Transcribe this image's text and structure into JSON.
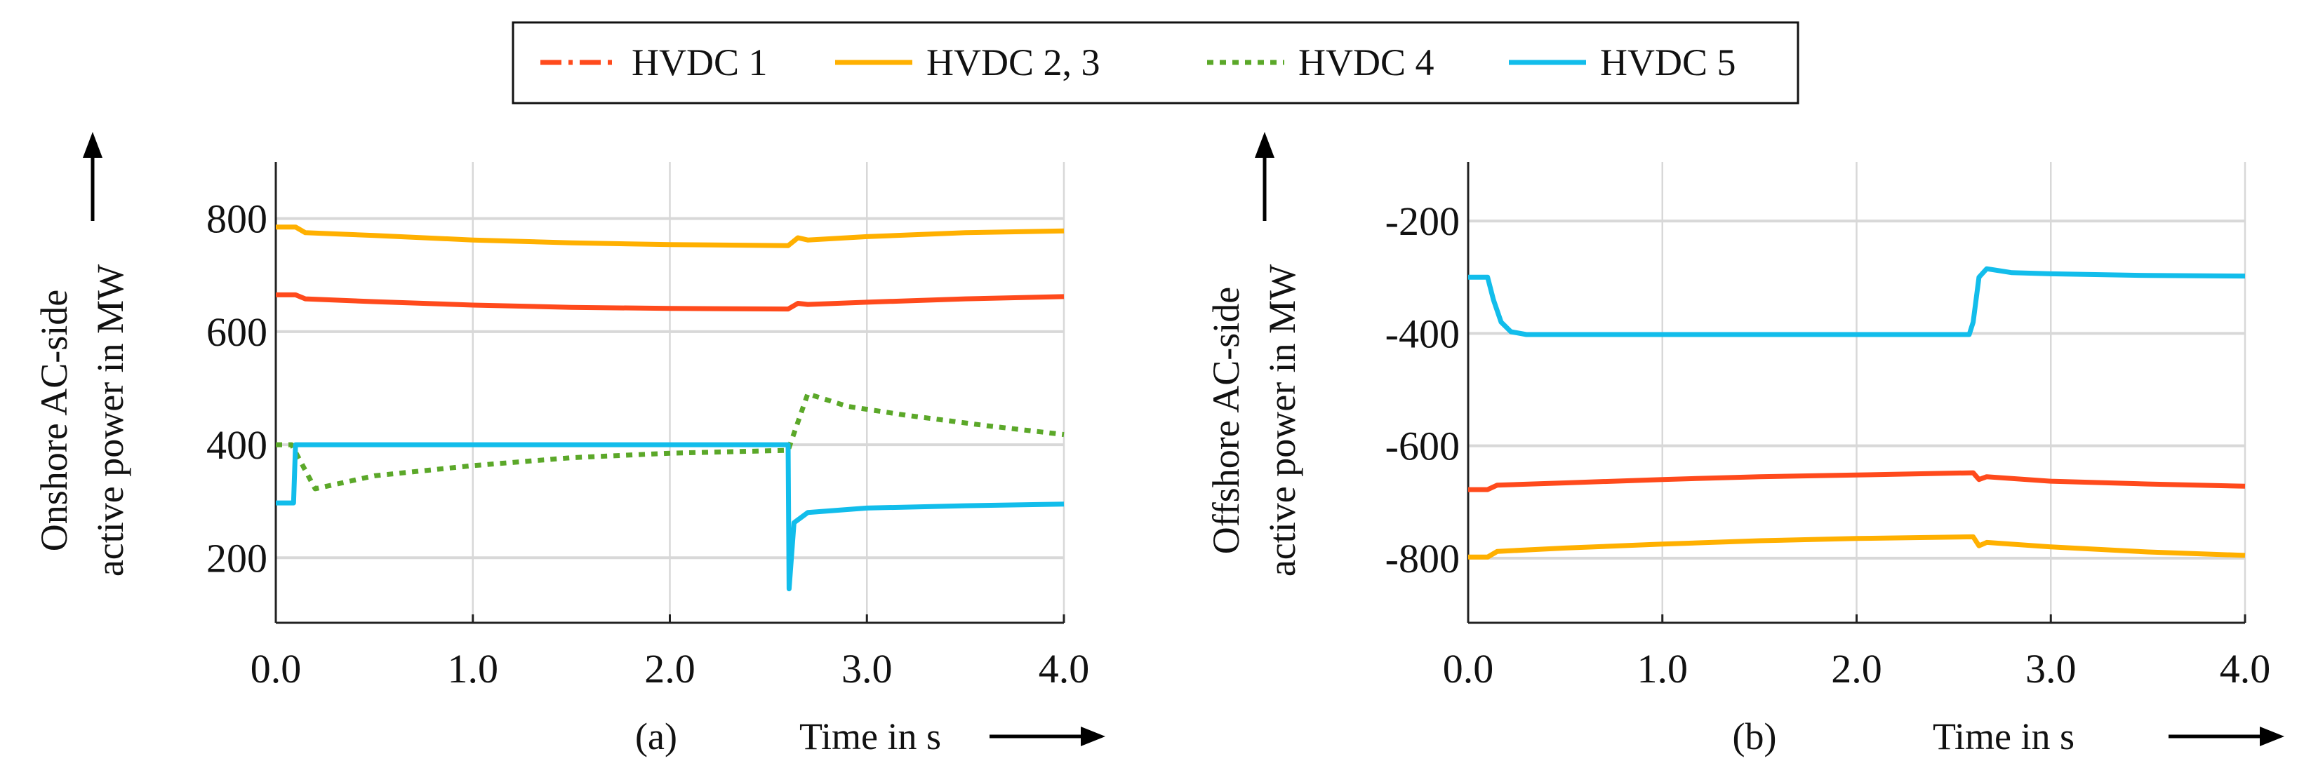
{
  "legend": [
    {
      "name": "HVDC 1",
      "color": "#FF4A1C",
      "dash": "dashdot"
    },
    {
      "name": "HVDC 2, 3",
      "color": "#FFB000",
      "dash": "solid"
    },
    {
      "name": "HVDC 4",
      "color": "#5BA829",
      "dash": "dotted"
    },
    {
      "name": "HVDC 5",
      "color": "#12BDEB",
      "dash": "solid"
    }
  ],
  "chart_data": [
    {
      "type": "line",
      "panel": "(a)",
      "ylabel_lines": [
        "Onshore AC-side",
        "active power in MW"
      ],
      "xlabel": "Time in s",
      "xlim": [
        0,
        4
      ],
      "ylim": [
        85,
        900
      ],
      "xticks": [
        0,
        1,
        2,
        3,
        4
      ],
      "xtick_labels": [
        "0.0",
        "1.0",
        "2.0",
        "3.0",
        "4.0"
      ],
      "yticks": [
        200,
        400,
        600,
        800
      ],
      "ytick_labels": [
        "200",
        "400",
        "600",
        "800"
      ],
      "grid": true,
      "series": [
        {
          "name": "HVDC 1",
          "x": [
            0,
            0.1,
            0.15,
            0.5,
            1.0,
            1.5,
            2.0,
            2.6,
            2.65,
            2.7,
            3.0,
            3.5,
            4.0
          ],
          "y": [
            665,
            665,
            658,
            653,
            647,
            643,
            641,
            640,
            650,
            648,
            652,
            658,
            662
          ]
        },
        {
          "name": "HVDC 2, 3",
          "x": [
            0,
            0.1,
            0.15,
            0.5,
            1.0,
            1.5,
            2.0,
            2.6,
            2.65,
            2.7,
            3.0,
            3.5,
            4.0
          ],
          "y": [
            785,
            785,
            775,
            770,
            762,
            757,
            754,
            752,
            766,
            762,
            768,
            775,
            778
          ]
        },
        {
          "name": "HVDC 4",
          "x": [
            0,
            0.08,
            0.2,
            0.5,
            1.0,
            1.5,
            2.0,
            2.6,
            2.7,
            2.9,
            3.2,
            3.6,
            4.0
          ],
          "y": [
            400,
            400,
            322,
            345,
            363,
            377,
            385,
            390,
            490,
            468,
            452,
            434,
            418
          ]
        },
        {
          "name": "HVDC 5",
          "x": [
            0,
            0.09,
            0.1,
            1.0,
            2.0,
            2.6,
            2.605,
            2.63,
            2.7,
            3.0,
            3.5,
            4.0
          ],
          "y": [
            297,
            297,
            400,
            400,
            400,
            400,
            145,
            262,
            280,
            288,
            292,
            295
          ]
        }
      ]
    },
    {
      "type": "line",
      "panel": "(b)",
      "ylabel_lines": [
        "Offshore AC-side",
        "active power in MW"
      ],
      "xlabel": "Time in s",
      "xlim": [
        0,
        4
      ],
      "ylim": [
        -915,
        -95
      ],
      "xticks": [
        0,
        1,
        2,
        3,
        4
      ],
      "xtick_labels": [
        "0.0",
        "1.0",
        "2.0",
        "3.0",
        "4.0"
      ],
      "yticks": [
        -800,
        -600,
        -400,
        -200
      ],
      "ytick_labels": [
        "-800",
        "-600",
        "-400",
        "-200"
      ],
      "grid": true,
      "series": [
        {
          "name": "HVDC 1",
          "x": [
            0,
            0.1,
            0.15,
            0.5,
            1.0,
            1.5,
            2.0,
            2.6,
            2.63,
            2.67,
            3.0,
            3.5,
            4.0
          ],
          "y": [
            -678,
            -678,
            -670,
            -666,
            -660,
            -655,
            -652,
            -648,
            -660,
            -655,
            -663,
            -668,
            -672
          ]
        },
        {
          "name": "HVDC 2, 3",
          "x": [
            0,
            0.1,
            0.15,
            0.5,
            1.0,
            1.5,
            2.0,
            2.6,
            2.63,
            2.67,
            3.0,
            3.5,
            4.0
          ],
          "y": [
            -798,
            -798,
            -788,
            -782,
            -775,
            -769,
            -765,
            -762,
            -778,
            -772,
            -780,
            -789,
            -795
          ]
        },
        {
          "name": "HVDC 5",
          "x": [
            0,
            0.1,
            0.13,
            0.17,
            0.22,
            0.3,
            1.0,
            2.0,
            2.58,
            2.6,
            2.63,
            2.67,
            2.8,
            3.0,
            3.5,
            4.0
          ],
          "y": [
            -300,
            -300,
            -340,
            -380,
            -397,
            -402,
            -402,
            -402,
            -402,
            -380,
            -300,
            -285,
            -292,
            -294,
            -297,
            -298
          ]
        }
      ]
    }
  ]
}
